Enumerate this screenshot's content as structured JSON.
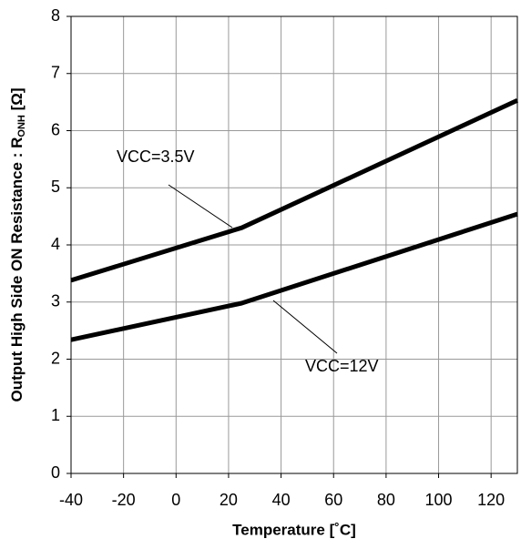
{
  "chart_data": {
    "type": "line",
    "x_label": "Temperature [˚C]",
    "y_label": "Output High Side ON Resistance : R",
    "y_label_subscript": "ONH",
    "y_label_suffix": " [Ω]",
    "x": [
      -40,
      25,
      130
    ],
    "series": [
      {
        "name": "VCC=3.5V",
        "color": "#000000",
        "values": [
          3.38,
          4.3,
          6.53
        ]
      },
      {
        "name": "VCC=12V",
        "color": "#000000",
        "values": [
          2.34,
          2.98,
          4.54
        ]
      }
    ],
    "xlim": [
      -40,
      130
    ],
    "xticks": [
      -40,
      -20,
      0,
      20,
      40,
      60,
      80,
      100,
      120
    ],
    "ylim": [
      0,
      8
    ],
    "yticks": [
      0,
      1,
      2,
      3,
      4,
      5,
      6,
      7,
      8
    ],
    "grid": true
  }
}
